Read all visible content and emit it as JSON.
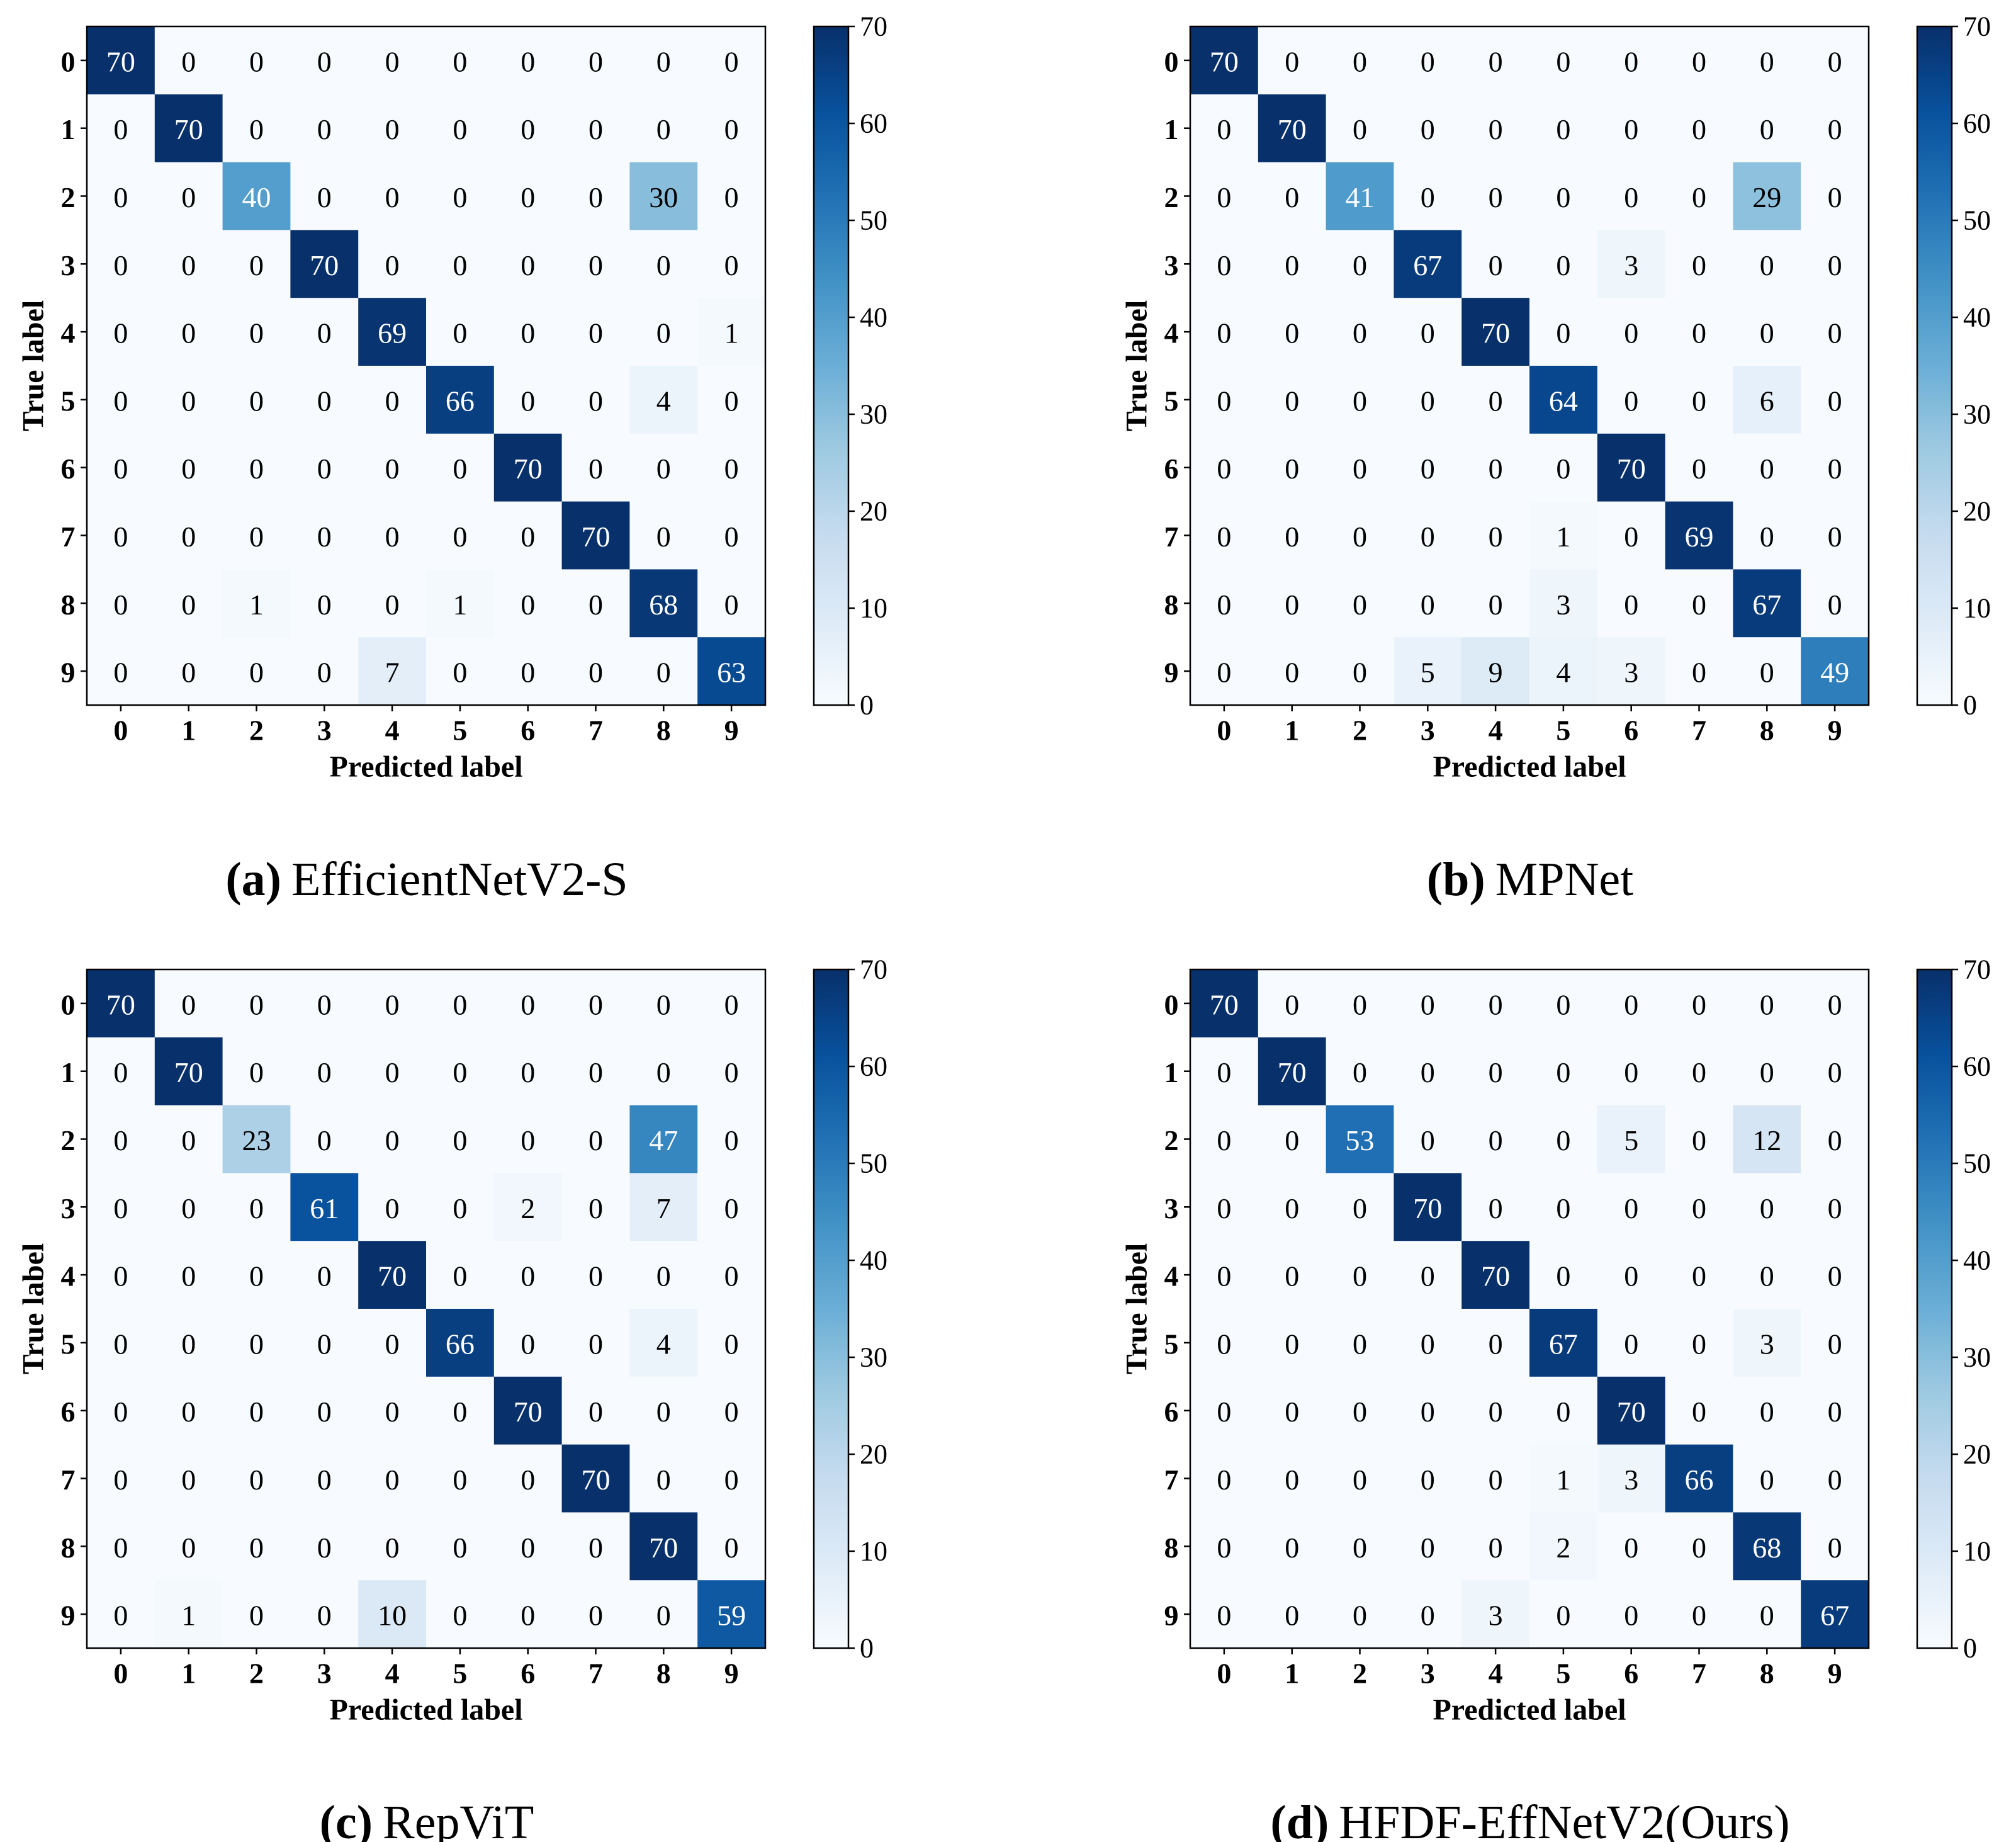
{
  "figure": {
    "colorscale": [
      "#f7fbff",
      "#deebf7",
      "#c6dbef",
      "#9ecae1",
      "#6baed6",
      "#4292c6",
      "#2171b5",
      "#08519c",
      "#08306b"
    ],
    "text_dark": "#000000",
    "text_light": "#ffffff"
  },
  "chart_data": [
    {
      "type": "heatmap",
      "caption_letter": "(a)",
      "caption_name": "EfficientNetV2-S",
      "xlabel": "Predicted label",
      "ylabel": "True label",
      "categories": [
        "0",
        "1",
        "2",
        "3",
        "4",
        "5",
        "6",
        "7",
        "8",
        "9"
      ],
      "colorbar_ticks": [
        "0",
        "10",
        "20",
        "30",
        "40",
        "50",
        "60",
        "70"
      ],
      "vmin": 0,
      "vmax": 70,
      "matrix": [
        [
          70,
          0,
          0,
          0,
          0,
          0,
          0,
          0,
          0,
          0
        ],
        [
          0,
          70,
          0,
          0,
          0,
          0,
          0,
          0,
          0,
          0
        ],
        [
          0,
          0,
          40,
          0,
          0,
          0,
          0,
          0,
          30,
          0
        ],
        [
          0,
          0,
          0,
          70,
          0,
          0,
          0,
          0,
          0,
          0
        ],
        [
          0,
          0,
          0,
          0,
          69,
          0,
          0,
          0,
          0,
          1
        ],
        [
          0,
          0,
          0,
          0,
          0,
          66,
          0,
          0,
          4,
          0
        ],
        [
          0,
          0,
          0,
          0,
          0,
          0,
          70,
          0,
          0,
          0
        ],
        [
          0,
          0,
          0,
          0,
          0,
          0,
          0,
          70,
          0,
          0
        ],
        [
          0,
          0,
          1,
          0,
          0,
          1,
          0,
          0,
          68,
          0
        ],
        [
          0,
          0,
          0,
          0,
          7,
          0,
          0,
          0,
          0,
          63
        ]
      ]
    },
    {
      "type": "heatmap",
      "caption_letter": "(b)",
      "caption_name": "MPNet",
      "xlabel": "Predicted label",
      "ylabel": "True label",
      "categories": [
        "0",
        "1",
        "2",
        "3",
        "4",
        "5",
        "6",
        "7",
        "8",
        "9"
      ],
      "colorbar_ticks": [
        "0",
        "10",
        "20",
        "30",
        "40",
        "50",
        "60",
        "70"
      ],
      "vmin": 0,
      "vmax": 70,
      "matrix": [
        [
          70,
          0,
          0,
          0,
          0,
          0,
          0,
          0,
          0,
          0
        ],
        [
          0,
          70,
          0,
          0,
          0,
          0,
          0,
          0,
          0,
          0
        ],
        [
          0,
          0,
          41,
          0,
          0,
          0,
          0,
          0,
          29,
          0
        ],
        [
          0,
          0,
          0,
          67,
          0,
          0,
          3,
          0,
          0,
          0
        ],
        [
          0,
          0,
          0,
          0,
          70,
          0,
          0,
          0,
          0,
          0
        ],
        [
          0,
          0,
          0,
          0,
          0,
          64,
          0,
          0,
          6,
          0
        ],
        [
          0,
          0,
          0,
          0,
          0,
          0,
          70,
          0,
          0,
          0
        ],
        [
          0,
          0,
          0,
          0,
          0,
          1,
          0,
          69,
          0,
          0
        ],
        [
          0,
          0,
          0,
          0,
          0,
          3,
          0,
          0,
          67,
          0
        ],
        [
          0,
          0,
          0,
          5,
          9,
          4,
          3,
          0,
          0,
          49
        ]
      ]
    },
    {
      "type": "heatmap",
      "caption_letter": "(c)",
      "caption_name": "RepViT",
      "xlabel": "Predicted label",
      "ylabel": "True label",
      "categories": [
        "0",
        "1",
        "2",
        "3",
        "4",
        "5",
        "6",
        "7",
        "8",
        "9"
      ],
      "colorbar_ticks": [
        "0",
        "10",
        "20",
        "30",
        "40",
        "50",
        "60",
        "70"
      ],
      "vmin": 0,
      "vmax": 70,
      "matrix": [
        [
          70,
          0,
          0,
          0,
          0,
          0,
          0,
          0,
          0,
          0
        ],
        [
          0,
          70,
          0,
          0,
          0,
          0,
          0,
          0,
          0,
          0
        ],
        [
          0,
          0,
          23,
          0,
          0,
          0,
          0,
          0,
          47,
          0
        ],
        [
          0,
          0,
          0,
          61,
          0,
          0,
          2,
          0,
          7,
          0
        ],
        [
          0,
          0,
          0,
          0,
          70,
          0,
          0,
          0,
          0,
          0
        ],
        [
          0,
          0,
          0,
          0,
          0,
          66,
          0,
          0,
          4,
          0
        ],
        [
          0,
          0,
          0,
          0,
          0,
          0,
          70,
          0,
          0,
          0
        ],
        [
          0,
          0,
          0,
          0,
          0,
          0,
          0,
          70,
          0,
          0
        ],
        [
          0,
          0,
          0,
          0,
          0,
          0,
          0,
          0,
          70,
          0
        ],
        [
          0,
          1,
          0,
          0,
          10,
          0,
          0,
          0,
          0,
          59
        ]
      ]
    },
    {
      "type": "heatmap",
      "caption_letter": "(d)",
      "caption_name": "HFDF-EffNetV2(Ours)",
      "xlabel": "Predicted label",
      "ylabel": "True label",
      "categories": [
        "0",
        "1",
        "2",
        "3",
        "4",
        "5",
        "6",
        "7",
        "8",
        "9"
      ],
      "colorbar_ticks": [
        "0",
        "10",
        "20",
        "30",
        "40",
        "50",
        "60",
        "70"
      ],
      "vmin": 0,
      "vmax": 70,
      "matrix": [
        [
          70,
          0,
          0,
          0,
          0,
          0,
          0,
          0,
          0,
          0
        ],
        [
          0,
          70,
          0,
          0,
          0,
          0,
          0,
          0,
          0,
          0
        ],
        [
          0,
          0,
          53,
          0,
          0,
          0,
          5,
          0,
          12,
          0
        ],
        [
          0,
          0,
          0,
          70,
          0,
          0,
          0,
          0,
          0,
          0
        ],
        [
          0,
          0,
          0,
          0,
          70,
          0,
          0,
          0,
          0,
          0
        ],
        [
          0,
          0,
          0,
          0,
          0,
          67,
          0,
          0,
          3,
          0
        ],
        [
          0,
          0,
          0,
          0,
          0,
          0,
          70,
          0,
          0,
          0
        ],
        [
          0,
          0,
          0,
          0,
          0,
          1,
          3,
          66,
          0,
          0
        ],
        [
          0,
          0,
          0,
          0,
          0,
          2,
          0,
          0,
          68,
          0
        ],
        [
          0,
          0,
          0,
          0,
          3,
          0,
          0,
          0,
          0,
          67
        ]
      ]
    }
  ]
}
